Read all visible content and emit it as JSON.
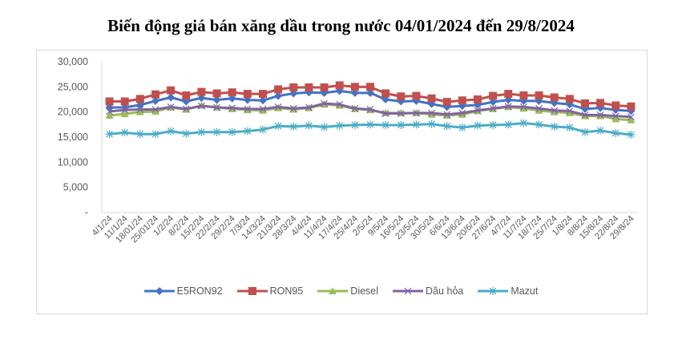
{
  "chart_data": {
    "type": "line",
    "title": "Biến động giá bán xăng dầu trong nước 04/01/2024 đến 29/8/2024",
    "xlabel": "",
    "ylabel": "",
    "ylim": [
      0,
      30000
    ],
    "yticks": [
      "-",
      "5,000",
      "10,000",
      "15,000",
      "20,000",
      "25,000",
      "30,000"
    ],
    "grid": false,
    "legend_position": "bottom",
    "categories": [
      "4/1/24",
      "11/1/24",
      "18/01/24",
      "25/01/24",
      "1/2/24",
      "8/2/24",
      "15/2/24",
      "22/2/24",
      "29/2/24",
      "7/3/24",
      "14/3/24",
      "21/3/24",
      "28/3/24",
      "4/4/24",
      "11/4/24",
      "17/4/24",
      "25/4/24",
      "2/5/24",
      "9/5/24",
      "16/5/24",
      "23/5/24",
      "30/5/24",
      "6/6/24",
      "13/6/24",
      "20/6/24",
      "27/6/24",
      "4/7/24",
      "11/7/24",
      "18/7/24",
      "25/7/24",
      "1/8/24",
      "8/8/24",
      "15/8/24",
      "22/8/24",
      "29/8/24"
    ],
    "series": [
      {
        "name": "E5RON92",
        "color": "#4472c4",
        "marker": "diamond",
        "values": [
          20900,
          20900,
          21400,
          22200,
          22900,
          22100,
          22800,
          22400,
          22700,
          22400,
          22300,
          23200,
          23700,
          23900,
          23800,
          24200,
          23800,
          23800,
          22500,
          22100,
          22200,
          21600,
          21000,
          21200,
          21400,
          22000,
          22400,
          22200,
          22200,
          21800,
          21500,
          20600,
          20800,
          20400,
          20200
        ]
      },
      {
        "name": "RON95",
        "color": "#c0504d",
        "marker": "square",
        "values": [
          22100,
          22100,
          22600,
          23500,
          24300,
          23300,
          24000,
          23700,
          23900,
          23600,
          23600,
          24500,
          24900,
          24900,
          24900,
          25300,
          25000,
          25000,
          23700,
          23100,
          23200,
          22700,
          22000,
          22300,
          22500,
          23200,
          23600,
          23300,
          23300,
          22900,
          22600,
          21700,
          21800,
          21300,
          21100
        ]
      },
      {
        "name": "Diesel",
        "color": "#9bbb59",
        "marker": "triangle",
        "values": [
          19300,
          19600,
          20000,
          20100,
          20900,
          20500,
          21300,
          20900,
          20600,
          20400,
          20300,
          20800,
          20500,
          20800,
          21500,
          21300,
          20600,
          20400,
          19800,
          19800,
          19800,
          19500,
          19300,
          19500,
          20200,
          20600,
          21000,
          20700,
          20300,
          20000,
          19800,
          19200,
          19200,
          18600,
          18400
        ]
      },
      {
        "name": "Dầu hỏa",
        "color": "#8064a2",
        "marker": "x",
        "values": [
          20100,
          20400,
          20500,
          20500,
          21000,
          20600,
          21200,
          20900,
          20800,
          20600,
          20600,
          21000,
          20700,
          20900,
          21700,
          21500,
          20700,
          20500,
          19700,
          19700,
          19800,
          19800,
          19500,
          19800,
          20300,
          20700,
          21100,
          21000,
          20700,
          20300,
          20200,
          19400,
          19400,
          19200,
          19000
        ]
      },
      {
        "name": "Mazut",
        "color": "#4bacc6",
        "marker": "star",
        "values": [
          15600,
          15900,
          15600,
          15600,
          16200,
          15700,
          16000,
          16000,
          16000,
          16200,
          16500,
          17200,
          17100,
          17300,
          17000,
          17300,
          17400,
          17500,
          17400,
          17400,
          17500,
          17600,
          17200,
          16900,
          17300,
          17400,
          17500,
          17800,
          17500,
          17100,
          16900,
          16000,
          16300,
          15800,
          15500
        ]
      }
    ]
  }
}
